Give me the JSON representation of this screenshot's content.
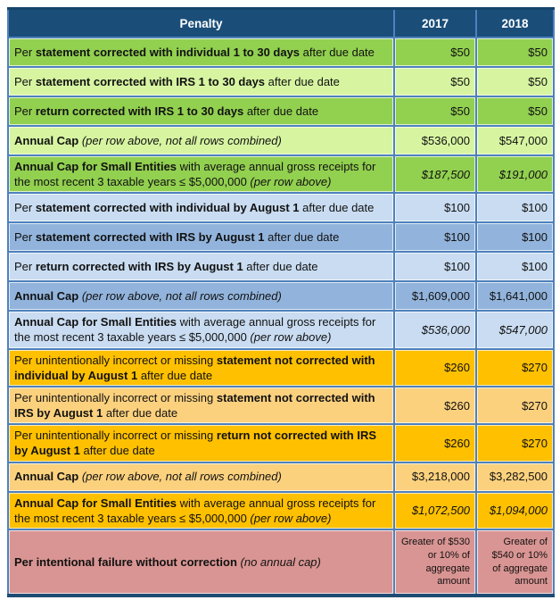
{
  "colors": {
    "header_bg": "#1A4E79",
    "header_text": "#FFFFFF",
    "border": "#4E81BD",
    "outer_top": "#16456B",
    "outer_bottom": "#1E4B73",
    "green_dark": "#92D050",
    "green_light": "#D7F5A1",
    "blue_light": "#C9DCF1",
    "blue_medium": "#92B4DC",
    "gold_dark": "#FFC000",
    "gold_light": "#FCD17E",
    "rose": "#D99593",
    "body_text": "#111111"
  },
  "table": {
    "header": {
      "penalty": "Penalty",
      "y2017": "2017",
      "y2018": "2018"
    },
    "rows": [
      {
        "bg": "green_dark",
        "segments": [
          {
            "t": "Per "
          },
          {
            "t": "statement corrected with individual 1 to 30 days",
            "b": true
          },
          {
            "t": " after due date"
          }
        ],
        "v2017": "$50",
        "v2018": "$50"
      },
      {
        "bg": "green_light",
        "segments": [
          {
            "t": "Per "
          },
          {
            "t": "statement corrected with IRS 1 to 30 days",
            "b": true
          },
          {
            "t": " after due date"
          }
        ],
        "v2017": "$50",
        "v2018": "$50"
      },
      {
        "bg": "green_dark",
        "segments": [
          {
            "t": "Per "
          },
          {
            "t": "return corrected with IRS 1 to 30 days",
            "b": true
          },
          {
            "t": " after due date"
          }
        ],
        "v2017": "$50",
        "v2018": "$50"
      },
      {
        "bg": "green_light",
        "segments": [
          {
            "t": "Annual Cap ",
            "b": true
          },
          {
            "t": "(per row above, not all rows combined)",
            "i": true
          }
        ],
        "v2017": "$536,000",
        "v2018": "$547,000"
      },
      {
        "bg": "green_dark",
        "segments": [
          {
            "t": "Annual Cap for Small Entities",
            "b": true
          },
          {
            "t": " with average annual gross receipts for the most recent 3 taxable years ≤ $5,000,000 "
          },
          {
            "t": "(per row above)",
            "i": true
          }
        ],
        "v2017": "$187,500",
        "v2018": "$191,000",
        "values_italic": true
      },
      {
        "bg": "blue_light",
        "segments": [
          {
            "t": "Per "
          },
          {
            "t": "statement corrected with individual by August 1",
            "b": true
          },
          {
            "t": " after due date"
          }
        ],
        "v2017": "$100",
        "v2018": "$100"
      },
      {
        "bg": "blue_medium",
        "segments": [
          {
            "t": "Per "
          },
          {
            "t": "statement corrected with IRS by August 1",
            "b": true
          },
          {
            "t": " after due date"
          }
        ],
        "v2017": "$100",
        "v2018": "$100"
      },
      {
        "bg": "blue_light",
        "segments": [
          {
            "t": "Per "
          },
          {
            "t": "return corrected with IRS by August 1",
            "b": true
          },
          {
            "t": " after due date"
          }
        ],
        "v2017": "$100",
        "v2018": "$100"
      },
      {
        "bg": "blue_medium",
        "segments": [
          {
            "t": "Annual Cap ",
            "b": true
          },
          {
            "t": "(per row above, not all rows combined)",
            "i": true
          }
        ],
        "v2017": "$1,609,000",
        "v2018": "$1,641,000"
      },
      {
        "bg": "blue_light",
        "segments": [
          {
            "t": "Annual Cap for Small Entities",
            "b": true
          },
          {
            "t": " with average annual gross receipts for the most recent 3 taxable years ≤ $5,000,000 "
          },
          {
            "t": "(per row above)",
            "i": true
          }
        ],
        "v2017": "$536,000",
        "v2018": "$547,000",
        "values_italic": true
      },
      {
        "bg": "gold_dark",
        "segments": [
          {
            "t": "Per unintentionally incorrect or missing "
          },
          {
            "t": "statement not corrected with individual by August 1",
            "b": true
          },
          {
            "t": " after due date"
          }
        ],
        "v2017": "$260",
        "v2018": "$270"
      },
      {
        "bg": "gold_light",
        "segments": [
          {
            "t": "Per unintentionally incorrect or missing "
          },
          {
            "t": "statement not corrected with IRS by August 1",
            "b": true
          },
          {
            "t": " after due date"
          }
        ],
        "v2017": "$260",
        "v2018": "$270"
      },
      {
        "bg": "gold_dark",
        "segments": [
          {
            "t": "Per unintentionally incorrect or missing "
          },
          {
            "t": "return not corrected with IRS by August 1",
            "b": true
          },
          {
            "t": " after due date"
          }
        ],
        "v2017": "$260",
        "v2018": "$270"
      },
      {
        "bg": "gold_light",
        "segments": [
          {
            "t": "Annual Cap ",
            "b": true
          },
          {
            "t": "(per row above, not all rows combined)",
            "i": true
          }
        ],
        "v2017": "$3,218,000",
        "v2018": "$3,282,500"
      },
      {
        "bg": "gold_dark",
        "segments": [
          {
            "t": "Annual Cap for Small Entities",
            "b": true
          },
          {
            "t": " with average annual gross receipts for the most recent 3 taxable years ≤ $5,000,000 "
          },
          {
            "t": "(per row above)",
            "i": true
          }
        ],
        "v2017": "$1,072,500",
        "v2018": "$1,094,000",
        "values_italic": true
      },
      {
        "bg": "rose",
        "segments": [
          {
            "t": "Per intentional failure without correction ",
            "b": true
          },
          {
            "t": "(no annual cap)",
            "i": true
          }
        ],
        "v2017": "Greater of $530 or 10% of aggregate amount",
        "v2018": "Greater of $540 or 10% of aggregate amount",
        "values_small": true
      }
    ]
  }
}
